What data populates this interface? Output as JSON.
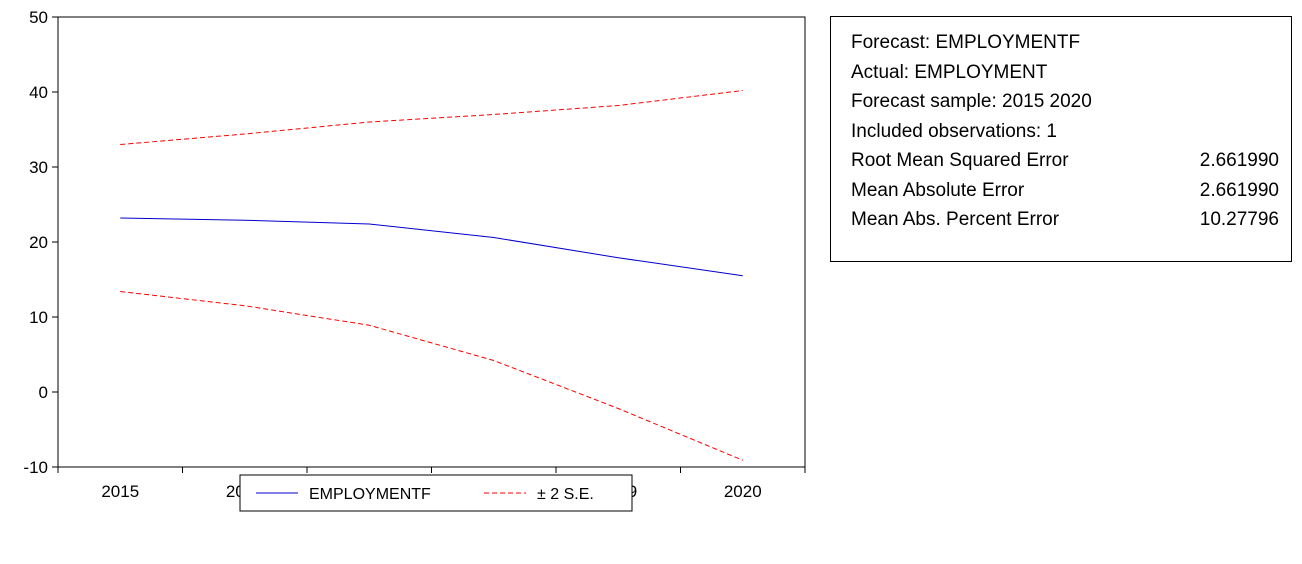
{
  "chart_data": {
    "type": "line",
    "x": [
      2015,
      2016,
      2017,
      2018,
      2019,
      2020
    ],
    "xlim": [
      2014.5,
      2020.5
    ],
    "ylim": [
      -10,
      50
    ],
    "yticks": [
      -10,
      0,
      10,
      20,
      30,
      40,
      50
    ],
    "grid": false,
    "legend_position": "bottom-center",
    "series": [
      {
        "name": "EMPLOYMENTF",
        "color": "#0000cc",
        "style": "solid",
        "values": [
          23.2,
          22.9,
          22.4,
          20.6,
          17.9,
          15.5
        ]
      },
      {
        "name": "± 2 S.E.",
        "color": "#ff0000",
        "style": "dashed",
        "values": [
          33.0,
          34.4,
          36.0,
          37.0,
          38.2,
          40.2
        ]
      },
      {
        "name": "± 2 S.E.",
        "color": "#ff0000",
        "style": "dashed",
        "legend": false,
        "values": [
          13.4,
          11.5,
          8.9,
          4.2,
          -2.2,
          -9.1
        ]
      }
    ]
  },
  "stats": {
    "lines": [
      "Forecast: EMPLOYMENTF",
      "Actual: EMPLOYMENT",
      "Forecast sample: 2015 2020",
      "Included observations: 1"
    ],
    "rows": [
      {
        "label": "Root Mean Squared Error",
        "value": "2.661990"
      },
      {
        "label": "Mean Absolute Error",
        "value": "2.661990"
      },
      {
        "label": "Mean Abs. Percent Error",
        "value": "10.27796"
      }
    ]
  },
  "legend": {
    "forecast_label": "EMPLOYMENTF",
    "se_label": "± 2 S.E."
  }
}
